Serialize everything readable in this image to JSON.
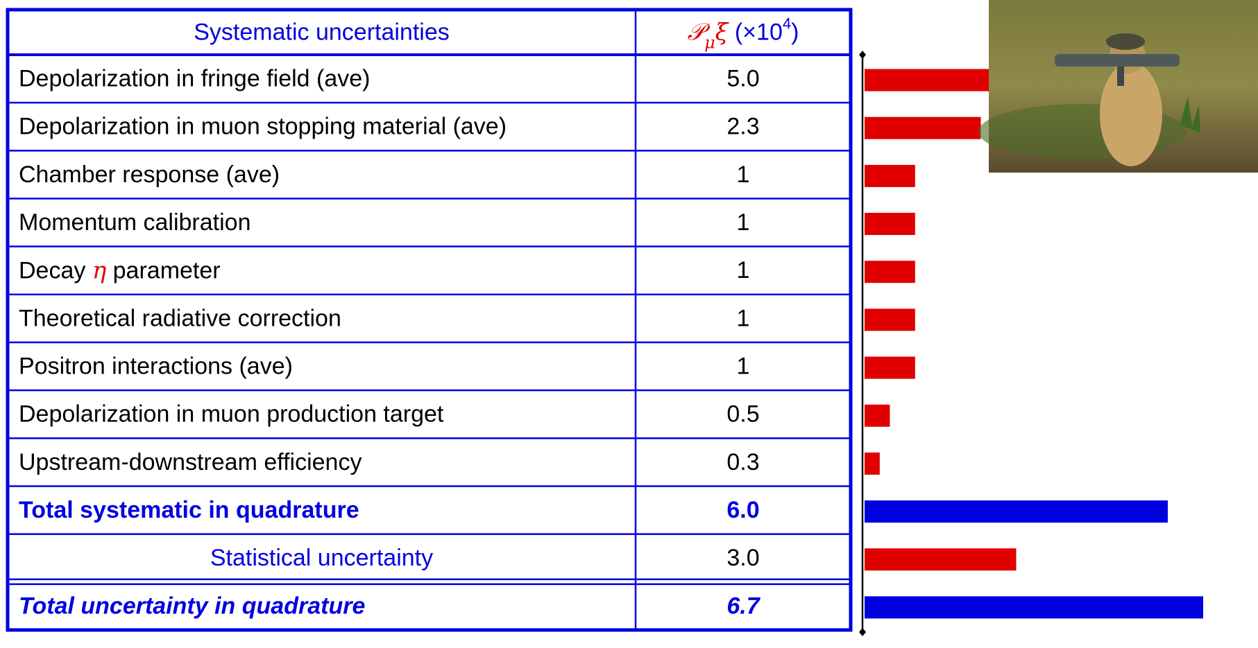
{
  "table": {
    "header": {
      "label": "Systematic uncertainties",
      "value_parts": [
        "𝒫",
        "μ",
        "ξ",
        " (×10",
        "4",
        ")"
      ]
    },
    "rows": [
      {
        "label": "Depolarization in fringe field (ave)",
        "value": 5,
        "value_label": "5.0",
        "style": "normal",
        "color": "#e00000"
      },
      {
        "label": "Depolarization in muon stopping material (ave)",
        "value": 2.3,
        "style": "normal",
        "color": "#e00000"
      },
      {
        "label": "Chamber response (ave)",
        "value": 1,
        "style": "normal",
        "color": "#e00000"
      },
      {
        "label": "Momentum calibration",
        "value": 1,
        "style": "normal",
        "color": "#e00000"
      },
      {
        "label_parts": [
          "Decay ",
          "η",
          " parameter"
        ],
        "value": 1,
        "style": "normal",
        "color": "#e00000"
      },
      {
        "label": "Theoretical radiative correction",
        "value": 1,
        "style": "normal",
        "color": "#e00000"
      },
      {
        "label": "Positron interactions (ave)",
        "value": 1,
        "style": "normal",
        "color": "#e00000"
      },
      {
        "label": "Depolarization in muon production target",
        "value": 0.5,
        "style": "normal",
        "color": "#e00000"
      },
      {
        "label": "Upstream-downstream efficiency",
        "value": 0.3,
        "style": "normal",
        "color": "#e00000"
      },
      {
        "label": "Total systematic in quadrature",
        "value": 6,
        "value_label": "6.0",
        "style": "total",
        "color": "#0000e0"
      },
      {
        "label": "Statistical uncertainty",
        "value": 3,
        "value_label": "3.0",
        "style": "statistical",
        "color": "#e00000"
      },
      {
        "label": "Total uncertainty in quadrature",
        "value": 6.7,
        "style": "grand-total",
        "color": "#0000e0"
      }
    ]
  }
}
